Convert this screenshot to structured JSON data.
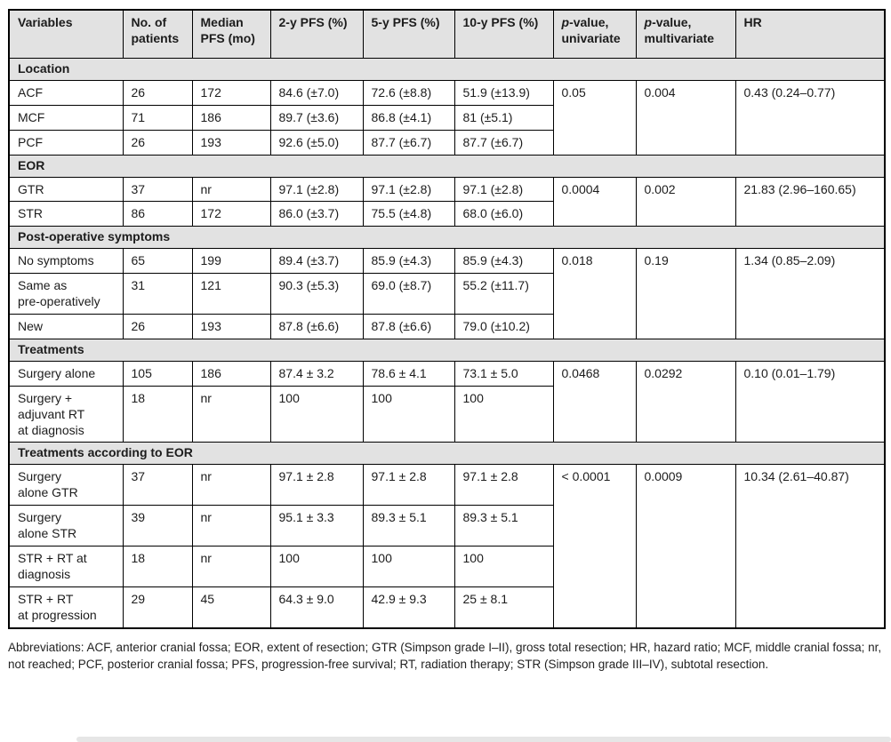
{
  "colors": {
    "header_bg": "#e2e2e2",
    "section_bg": "#e2e2e2",
    "border": "#000000",
    "text": "#1c1c1c"
  },
  "table": {
    "columns": [
      "Variables",
      "No. of patients",
      "Median PFS (mo)",
      "2-y PFS (%)",
      "5-y PFS (%)",
      "10-y PFS (%)",
      "p-value, univariate",
      "p-value, multivariate",
      "HR"
    ],
    "sections": [
      {
        "title": "Location",
        "stats": {
          "p_univariate": "0.05",
          "p_multivariate": "0.004",
          "hr": "0.43 (0.24–0.77)"
        },
        "rows": [
          {
            "variable": "ACF",
            "n": "26",
            "median": "172",
            "pfs2": "84.6 (±7.0)",
            "pfs5": "72.6 (±8.8)",
            "pfs10": "51.9 (±13.9)"
          },
          {
            "variable": "MCF",
            "n": "71",
            "median": "186",
            "pfs2": "89.7 (±3.6)",
            "pfs5": "86.8 (±4.1)",
            "pfs10": "81 (±5.1)"
          },
          {
            "variable": "PCF",
            "n": "26",
            "median": "193",
            "pfs2": "92.6 (±5.0)",
            "pfs5": "87.7 (±6.7)",
            "pfs10": "87.7 (±6.7)"
          }
        ]
      },
      {
        "title": "EOR",
        "stats": {
          "p_univariate": "0.0004",
          "p_multivariate": "0.002",
          "hr": "21.83 (2.96–160.65)"
        },
        "rows": [
          {
            "variable": "GTR",
            "n": "37",
            "median": "nr",
            "pfs2": "97.1 (±2.8)",
            "pfs5": "97.1 (±2.8)",
            "pfs10": "97.1 (±2.8)"
          },
          {
            "variable": "STR",
            "n": "86",
            "median": "172",
            "pfs2": "86.0 (±3.7)",
            "pfs5": "75.5 (±4.8)",
            "pfs10": "68.0 (±6.0)"
          }
        ]
      },
      {
        "title": "Post-operative symptoms",
        "stats": {
          "p_univariate": "0.018",
          "p_multivariate": "0.19",
          "hr": "1.34 (0.85–2.09)"
        },
        "rows": [
          {
            "variable": "No symptoms",
            "n": "65",
            "median": "199",
            "pfs2": "89.4 (±3.7)",
            "pfs5": "85.9 (±4.3)",
            "pfs10": "85.9 (±4.3)"
          },
          {
            "variable": "Same as\npre-operatively",
            "n": "31",
            "median": "121",
            "pfs2": "90.3 (±5.3)",
            "pfs5": "69.0 (±8.7)",
            "pfs10": "55.2 (±11.7)"
          },
          {
            "variable": "New",
            "n": "26",
            "median": "193",
            "pfs2": "87.8 (±6.6)",
            "pfs5": "87.8 (±6.6)",
            "pfs10": "79.0 (±10.2)"
          }
        ]
      },
      {
        "title": "Treatments",
        "stats": {
          "p_univariate": "0.0468",
          "p_multivariate": "0.0292",
          "hr": "0.10 (0.01–1.79)"
        },
        "rows": [
          {
            "variable": "Surgery alone",
            "n": "105",
            "median": "186",
            "pfs2": "87.4 ± 3.2",
            "pfs5": "78.6 ± 4.1",
            "pfs10": "73.1 ± 5.0"
          },
          {
            "variable": "Surgery +\nadjuvant RT\nat diagnosis",
            "n": "18",
            "median": "nr",
            "pfs2": "100",
            "pfs5": "100",
            "pfs10": "100"
          }
        ]
      },
      {
        "title": "Treatments according to EOR",
        "stats": {
          "p_univariate": "< 0.0001",
          "p_multivariate": "0.0009",
          "hr": "10.34 (2.61–40.87)"
        },
        "rows": [
          {
            "variable": "Surgery\nalone GTR",
            "n": "37",
            "median": "nr",
            "pfs2": "97.1 ± 2.8",
            "pfs5": "97.1 ± 2.8",
            "pfs10": "97.1 ± 2.8"
          },
          {
            "variable": "Surgery\nalone STR",
            "n": "39",
            "median": "nr",
            "pfs2": "95.1 ± 3.3",
            "pfs5": "89.3 ± 5.1",
            "pfs10": "89.3 ± 5.1"
          },
          {
            "variable": "STR + RT at\ndiagnosis",
            "n": "18",
            "median": "nr",
            "pfs2": "100",
            "pfs5": "100",
            "pfs10": "100"
          },
          {
            "variable": "STR + RT\nat progression",
            "n": "29",
            "median": "45",
            "pfs2": "64.3 ± 9.0",
            "pfs5": "42.9 ± 9.3",
            "pfs10": "25 ± 8.1"
          }
        ]
      }
    ]
  },
  "footnote": "Abbreviations: ACF, anterior cranial fossa; EOR, extent of resection; GTR (Simpson grade I–II), gross total resection; HR, hazard ratio; MCF, middle cranial fossa; nr, not reached; PCF, posterior cranial fossa; PFS, progression-free survival; RT, radiation therapy; STR (Simpson grade III–IV), subtotal resection."
}
